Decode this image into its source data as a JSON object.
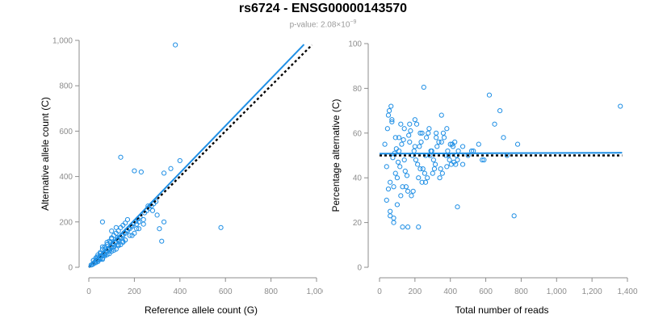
{
  "title": "rs6724 - ENSG00000143570",
  "subtitle": {
    "prefix": "p-value: 2.08×10",
    "exponent": "−9"
  },
  "colors": {
    "points": "#1f8fe5",
    "fit_line": "#1f8fe5",
    "reference_line": "#000000",
    "axis": "#8c8c8c"
  },
  "chart_data": [
    {
      "type": "scatter",
      "xlabel": "Reference allele count (G)",
      "ylabel": "Alternative allele count (C)",
      "xlim": [
        0,
        1000
      ],
      "ylim": [
        0,
        1000
      ],
      "xticks": [
        0,
        200,
        400,
        600,
        800,
        1000
      ],
      "yticks": [
        0,
        200,
        400,
        600,
        800,
        1000
      ],
      "xtick_labels": [
        "0",
        "200",
        "400",
        "600",
        "800",
        "1,000"
      ],
      "ytick_labels": [
        "0",
        "200",
        "400",
        "600",
        "800",
        "1,000"
      ],
      "grid": false,
      "fit_line": {
        "x": [
          0,
          945
        ],
        "y": [
          0,
          982
        ]
      },
      "reference_line": {
        "x": [
          0,
          980
        ],
        "y": [
          0,
          980
        ],
        "style": "dotted"
      },
      "points": {
        "x": [
          380,
          580,
          140,
          200,
          230,
          330,
          360,
          400,
          320,
          310,
          330,
          300,
          260,
          280,
          240,
          220,
          210,
          190,
          180,
          170,
          160,
          150,
          140,
          130,
          120,
          110,
          100,
          90,
          80,
          70,
          60,
          50,
          40,
          30,
          20,
          10,
          15,
          25,
          35,
          45,
          55,
          65,
          75,
          85,
          95,
          105,
          115,
          125,
          135,
          145,
          155,
          165,
          175,
          185,
          195,
          205,
          215,
          225,
          245,
          255,
          265,
          275,
          285,
          295,
          170,
          160,
          150,
          140,
          130,
          120,
          110,
          100,
          90,
          80,
          70,
          60,
          50,
          40,
          30,
          20,
          120,
          100,
          80,
          60,
          40,
          160,
          180,
          200,
          220,
          240,
          150,
          130,
          110,
          90,
          70,
          50,
          30,
          60,
          80,
          100,
          140,
          160,
          190,
          210,
          60,
          70,
          90,
          110,
          130,
          150,
          60,
          40,
          100,
          120,
          20,
          35,
          50,
          70,
          95,
          125
        ],
        "y": [
          980,
          175,
          485,
          425,
          420,
          415,
          435,
          470,
          115,
          170,
          200,
          230,
          270,
          250,
          210,
          200,
          190,
          180,
          170,
          160,
          150,
          140,
          130,
          120,
          110,
          100,
          90,
          80,
          70,
          60,
          50,
          40,
          30,
          25,
          15,
          10,
          12,
          22,
          32,
          42,
          52,
          62,
          72,
          82,
          92,
          102,
          112,
          122,
          132,
          142,
          152,
          162,
          172,
          182,
          192,
          202,
          212,
          222,
          240,
          250,
          260,
          270,
          280,
          290,
          210,
          195,
          185,
          175,
          160,
          150,
          140,
          125,
          115,
          100,
          90,
          80,
          65,
          55,
          40,
          30,
          80,
          70,
          55,
          40,
          25,
          120,
          140,
          150,
          170,
          190,
          110,
          100,
          90,
          70,
          55,
          35,
          20,
          90,
          110,
          130,
          100,
          120,
          140,
          170,
          35,
          50,
          60,
          75,
          95,
          115,
          200,
          45,
          160,
          175,
          30,
          45,
          60,
          80,
          110,
          130
        ]
      }
    },
    {
      "type": "scatter",
      "xlabel": "Total number of reads",
      "ylabel": "Percentage alternative (C)",
      "xlim": [
        0,
        1400
      ],
      "ylim": [
        0,
        100
      ],
      "xticks": [
        0,
        200,
        400,
        600,
        800,
        1000,
        1200,
        1400
      ],
      "yticks": [
        0,
        20,
        40,
        60,
        80,
        100
      ],
      "xtick_labels": [
        "0",
        "200",
        "400",
        "600",
        "800",
        "1,000",
        "1,200",
        "1,400"
      ],
      "ytick_labels": [
        "0",
        "20",
        "40",
        "60",
        "80",
        "100"
      ],
      "grid": false,
      "fit_line": {
        "x": [
          0,
          1370
        ],
        "y": [
          50.8,
          51.2
        ]
      },
      "reference_line": {
        "x": [
          0,
          1370
        ],
        "y": [
          50,
          50
        ],
        "style": "dotted"
      },
      "points": {
        "x": [
          250,
          620,
          1360,
          760,
          440,
          220,
          160,
          130,
          80,
          60,
          50,
          40,
          30,
          45,
          70,
          90,
          110,
          140,
          170,
          200,
          230,
          260,
          290,
          320,
          350,
          380,
          410,
          440,
          470,
          500,
          530,
          560,
          590,
          650,
          700,
          780,
          55,
          65,
          75,
          85,
          95,
          105,
          115,
          125,
          135,
          145,
          155,
          165,
          175,
          185,
          195,
          205,
          215,
          225,
          235,
          245,
          255,
          265,
          275,
          285,
          295,
          305,
          315,
          325,
          335,
          345,
          355,
          365,
          375,
          385,
          395,
          405,
          415,
          425,
          435,
          445,
          60,
          80,
          100,
          120,
          140,
          160,
          180,
          200,
          220,
          240,
          260,
          280,
          300,
          320,
          340,
          360,
          380,
          400,
          420,
          40,
          50,
          60,
          70,
          80,
          100,
          120,
          150,
          190,
          210,
          240,
          270,
          310,
          350,
          390,
          430,
          470,
          520,
          580,
          680,
          720,
          90,
          110,
          130,
          170,
          230
        ],
        "y": [
          80.5,
          77,
          72,
          23,
          27,
          18,
          18,
          18,
          20,
          23,
          35,
          45,
          55,
          62,
          66,
          58,
          52,
          48,
          56,
          54,
          44,
          50,
          52,
          60,
          68,
          62,
          55,
          48,
          46,
          50,
          52,
          55,
          48,
          64,
          58,
          55,
          70,
          72,
          49,
          51,
          53,
          47,
          45,
          55,
          57,
          43,
          41,
          59,
          61,
          50,
          52,
          48,
          46,
          54,
          56,
          44,
          42,
          58,
          60,
          50,
          52,
          48,
          46,
          54,
          56,
          44,
          42,
          58,
          50,
          52,
          48,
          46,
          54,
          56,
          50,
          52,
          38,
          36,
          40,
          64,
          62,
          34,
          32,
          66,
          40,
          60,
          38,
          62,
          42,
          58,
          40,
          60,
          45,
          55,
          47,
          30,
          68,
          25,
          65,
          22,
          28,
          32,
          36,
          34,
          64,
          38,
          40,
          44,
          56,
          50,
          46,
          54,
          52,
          48,
          70,
          50,
          42,
          58,
          36,
          64,
          60
        ]
      }
    }
  ]
}
